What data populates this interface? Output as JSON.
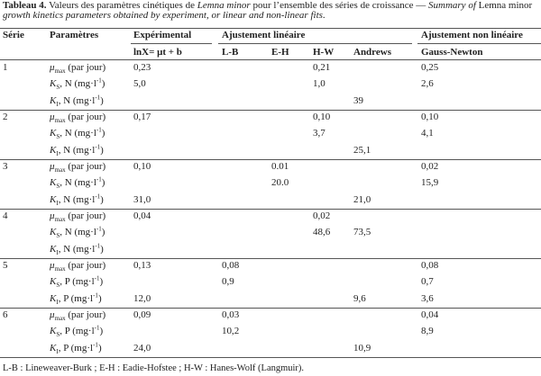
{
  "caption": {
    "label": "Tableau 4.",
    "parts": [
      " Valeurs des paramètres cinétiques de ",
      "Lemna minor",
      " pour l’ensemble des séries de croissance — ",
      "Summary of",
      " Lemna minor ",
      "growth kinetics parameters obtained by experiment, or linear and non-linear fits",
      "."
    ]
  },
  "table": {
    "header": {
      "serie": "Série",
      "parametres": "Paramètres",
      "experimental": "Expérimental",
      "linear": "Ajustement linéaire",
      "nonlinear": "Ajustement non linéaire",
      "columns": [
        "lnX= μt + b",
        "L-B",
        "E-H",
        "H-W",
        "Andrews",
        "Gauss-Newton"
      ]
    },
    "series": [
      {
        "label": "1",
        "rows": [
          {
            "parameter": {
              "symbol": "μ",
              "subscript": "max",
              "text": " (par jour)"
            },
            "values": [
              "0,23",
              null,
              null,
              "0,21",
              null,
              "0,25"
            ]
          },
          {
            "parameter": {
              "symbol": "K",
              "subscript": "S",
              "text": ", N (mg·l",
              "superscript": "-1",
              "after": ")"
            },
            "values": [
              "5,0",
              null,
              null,
              "1,0",
              null,
              "2,6"
            ]
          },
          {
            "parameter": {
              "symbol": "K",
              "subscript": "I",
              "text": ", N (mg·l",
              "superscript": "-1",
              "after": ")"
            },
            "values": [
              null,
              null,
              null,
              null,
              "39",
              null
            ]
          }
        ]
      },
      {
        "label": "2",
        "rows": [
          {
            "parameter": {
              "symbol": "μ",
              "subscript": "max",
              "text": " (par jour)"
            },
            "values": [
              "0,17",
              null,
              null,
              "0,10",
              null,
              "0,10"
            ]
          },
          {
            "parameter": {
              "symbol": "K",
              "subscript": "S",
              "text": ", N (mg·l",
              "superscript": "-1",
              "after": ")"
            },
            "values": [
              null,
              null,
              null,
              "3,7",
              null,
              "4,1"
            ]
          },
          {
            "parameter": {
              "symbol": "K",
              "subscript": "I",
              "text": ", N (mg·l",
              "superscript": "-1",
              "after": ")"
            },
            "values": [
              null,
              null,
              null,
              null,
              "25,1",
              null
            ]
          }
        ]
      },
      {
        "label": "3",
        "rows": [
          {
            "parameter": {
              "symbol": "μ",
              "subscript": "max",
              "text": " (par jour)"
            },
            "values": [
              "0,10",
              null,
              "0.01",
              null,
              null,
              "0,02"
            ]
          },
          {
            "parameter": {
              "symbol": "K",
              "subscript": "S",
              "text": ", N (mg·l",
              "superscript": "-1",
              "after": ")"
            },
            "values": [
              null,
              null,
              "20.0",
              null,
              null,
              "15,9"
            ]
          },
          {
            "parameter": {
              "symbol": "K",
              "subscript": "I",
              "text": ", N (mg·l",
              "superscript": "-1",
              "after": ")"
            },
            "values": [
              "31,0",
              null,
              null,
              null,
              "21,0",
              null
            ]
          }
        ]
      },
      {
        "label": "4",
        "rows": [
          {
            "parameter": {
              "symbol": "μ",
              "subscript": "max",
              "text": " (par jour)"
            },
            "values": [
              "0,04",
              null,
              null,
              "0,02",
              null,
              null
            ]
          },
          {
            "parameter": {
              "symbol": "K",
              "subscript": "S",
              "text": ", N (mg·l",
              "superscript": "-1",
              "after": ")"
            },
            "values": [
              null,
              null,
              null,
              "48,6",
              "73,5",
              null
            ]
          },
          {
            "parameter": {
              "symbol": "K",
              "subscript": "I",
              "text": ", N (mg·l",
              "superscript": "-1",
              "after": ")"
            },
            "values": [
              null,
              null,
              null,
              null,
              null,
              null
            ]
          }
        ]
      },
      {
        "label": "5",
        "rows": [
          {
            "parameter": {
              "symbol": "μ",
              "subscript": "max",
              "text": " (par jour)"
            },
            "values": [
              "0,13",
              "0,08",
              null,
              null,
              null,
              "0,08"
            ]
          },
          {
            "parameter": {
              "symbol": "K",
              "subscript": "S",
              "text": ", P (mg·l",
              "superscript": "-1",
              "after": ")"
            },
            "values": [
              null,
              "0,9",
              null,
              null,
              null,
              "0,7"
            ]
          },
          {
            "parameter": {
              "symbol": "K",
              "subscript": "I",
              "text": ", P (mg·l",
              "superscript": "-1",
              "after": ")"
            },
            "values": [
              "12,0",
              null,
              null,
              null,
              "9,6",
              "3,6"
            ]
          }
        ]
      },
      {
        "label": "6",
        "rows": [
          {
            "parameter": {
              "symbol": "μ",
              "subscript": "max",
              "text": " (par jour)"
            },
            "values": [
              "0,09",
              "0,03",
              null,
              null,
              null,
              "0,04"
            ]
          },
          {
            "parameter": {
              "symbol": "K",
              "subscript": "S",
              "text": ", P (mg·l",
              "superscript": "-1",
              "after": ")"
            },
            "values": [
              null,
              "10,2",
              null,
              null,
              null,
              "8,9"
            ]
          },
          {
            "parameter": {
              "symbol": "K",
              "subscript": "I",
              "text": ", P (mg·l",
              "superscript": "-1",
              "after": ")"
            },
            "values": [
              "24,0",
              null,
              null,
              null,
              "10,9",
              null
            ]
          }
        ]
      }
    ]
  },
  "footnote": "L-B : Lineweaver-Burk ; E-H : Eadie-Hofstee ; H-W : Hanes-Wolf (Langmuir)."
}
